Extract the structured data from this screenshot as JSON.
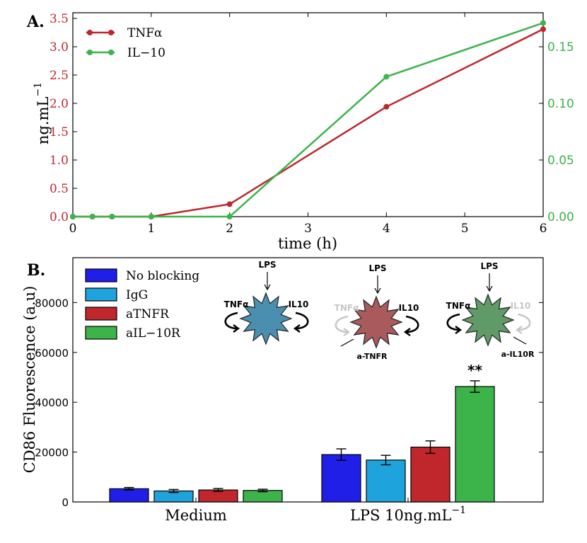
{
  "panel_a_label": "A.",
  "panel_b_label": "B.",
  "chart_data": [
    {
      "type": "line",
      "xlabel": "time (h)",
      "ylabel": "ng.mL",
      "ylabel_sup": "−1",
      "xlim": [
        0,
        6
      ],
      "ylim": [
        0,
        3.6
      ],
      "ylim_right": [
        0,
        0.18
      ],
      "xticks": [
        "0",
        "1",
        "2",
        "3",
        "4",
        "5",
        "6"
      ],
      "yticks_left": [
        "0.0",
        "0.5",
        "1.0",
        "1.5",
        "2.0",
        "2.5",
        "3.0",
        "3.5"
      ],
      "yticks_right": [
        "0.00",
        "0.05",
        "0.10",
        "0.15"
      ],
      "legend_position": "top-left",
      "series": [
        {
          "name": "TNFα",
          "color": "#c0272d",
          "axis": "left",
          "x": [
            0,
            0.25,
            0.5,
            1,
            2,
            4,
            6
          ],
          "y": [
            0,
            0,
            0,
            0,
            0.22,
            1.94,
            3.31
          ]
        },
        {
          "name": "IL−10",
          "color": "#3cb44a",
          "axis": "right",
          "x": [
            0,
            0.25,
            0.5,
            1,
            2,
            4,
            6
          ],
          "y": [
            0,
            0,
            0,
            0,
            0,
            0.1235,
            0.171
          ]
        }
      ]
    },
    {
      "type": "bar",
      "ylabel": "CD86 Fluorescence (a.u)",
      "ylim": [
        0,
        98000
      ],
      "yticks": [
        "0",
        "20000",
        "40000",
        "60000",
        "80000"
      ],
      "categories": [
        "Medium",
        "LPS 10ng.mL"
      ],
      "category_sup": [
        "",
        "−1"
      ],
      "legend_position": "top-left",
      "series": [
        {
          "name": "No blocking",
          "color": "#1f1fe8",
          "values": [
            5300,
            19000
          ],
          "errors": [
            500,
            2300
          ]
        },
        {
          "name": "IgG",
          "color": "#1fa3dc",
          "values": [
            4400,
            16800
          ],
          "errors": [
            600,
            1900
          ]
        },
        {
          "name": "aTNFR",
          "color": "#c0272d",
          "values": [
            4800,
            22000
          ],
          "errors": [
            600,
            2500
          ]
        },
        {
          "name": "aIL−10R",
          "color": "#3cb44a",
          "values": [
            4600,
            46300
          ],
          "errors": [
            500,
            2300
          ]
        }
      ],
      "significance": "**",
      "diagrams": [
        {
          "lps": "LPS",
          "left": "TNFα",
          "right": "IL10",
          "left_faded": false,
          "right_faded": false,
          "cell_color": "#4b8fb0",
          "blocker": ""
        },
        {
          "lps": "LPS",
          "left": "TNFα",
          "right": "IL10",
          "left_faded": true,
          "right_faded": false,
          "cell_color": "#a85a5c",
          "blocker": "a-TNFR"
        },
        {
          "lps": "LPS",
          "left": "TNFα",
          "right": "IL10",
          "left_faded": false,
          "right_faded": true,
          "cell_color": "#5f9a68",
          "blocker": "a-IL10R"
        }
      ]
    }
  ]
}
